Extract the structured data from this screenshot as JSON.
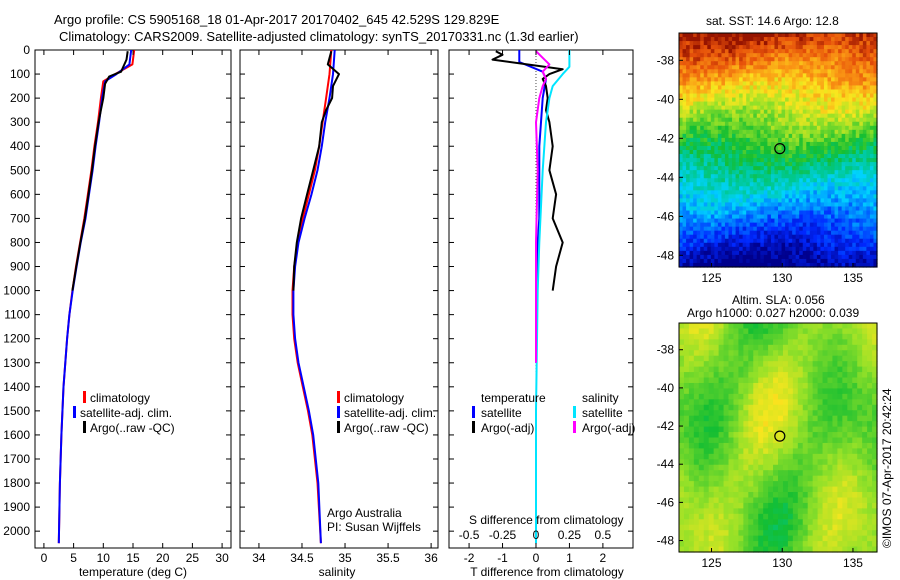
{
  "header": {
    "line1": "Argo profile: CS 5905168_18 01-Apr-2017 20170402_645 42.529S 129.829E",
    "line2": "Climatology: CARS2009. Satellite-adjusted climatology: synTS_20170331.nc (1.3d earlier)"
  },
  "colors": {
    "climatology": "#ff0000",
    "satellite": "#0000ff",
    "argo": "#000000",
    "sal_satellite": "#00e5ff",
    "sal_argo": "#ff00ff"
  },
  "chart_data": [
    {
      "id": "temperature",
      "type": "line",
      "xlabel": "temperature (deg C)",
      "ylabel": "",
      "xlim": [
        -1.5,
        31.5
      ],
      "ylim": [
        2070,
        0
      ],
      "x_ticks": [
        0,
        5,
        10,
        15,
        20,
        25,
        30
      ],
      "y_ticks": [
        0,
        100,
        200,
        300,
        400,
        500,
        600,
        700,
        800,
        900,
        1000,
        1100,
        1200,
        1300,
        1400,
        1500,
        1600,
        1700,
        1800,
        1900,
        2000
      ],
      "legend": [
        "climatology",
        "satellite-adj. clim.",
        "Argo(..raw -QC)"
      ],
      "series": [
        {
          "name": "climatology",
          "color": "red",
          "depth": [
            0,
            60,
            100,
            130,
            200,
            300,
            400,
            500,
            600,
            700,
            800,
            900,
            1000,
            1100,
            1200,
            1300,
            1400,
            1600,
            1800,
            2050
          ],
          "x": [
            15.2,
            14.9,
            12.0,
            10.0,
            9.6,
            9.1,
            8.5,
            8.0,
            7.4,
            6.8,
            6.1,
            5.4,
            4.8,
            4.3,
            3.9,
            3.6,
            3.3,
            2.95,
            2.7,
            2.5
          ]
        },
        {
          "name": "satellite-adj. clim.",
          "color": "blue",
          "depth": [
            0,
            60,
            100,
            130,
            200,
            300,
            400,
            500,
            600,
            700,
            800,
            900,
            1000,
            1100,
            1200,
            1300,
            1400,
            1600,
            1800,
            2050
          ],
          "x": [
            14.7,
            14.4,
            12.2,
            10.3,
            9.8,
            9.3,
            8.7,
            8.2,
            7.6,
            7.0,
            6.2,
            5.5,
            4.85,
            4.3,
            3.9,
            3.6,
            3.3,
            2.95,
            2.7,
            2.5
          ]
        },
        {
          "name": "Argo(..raw -QC)",
          "color": "black",
          "depth": [
            5,
            40,
            90,
            110,
            140,
            200,
            250,
            300,
            400,
            500,
            600,
            700,
            800,
            900,
            1000
          ],
          "x": [
            14.1,
            13.9,
            13.0,
            11.0,
            10.3,
            10.0,
            9.6,
            9.2,
            8.6,
            8.1,
            7.5,
            6.9,
            6.15,
            5.45,
            4.8
          ]
        }
      ]
    },
    {
      "id": "salinity",
      "type": "line",
      "xlabel": "salinity",
      "ylabel": "",
      "xlim": [
        33.78,
        36.08
      ],
      "ylim": [
        2070,
        0
      ],
      "x_ticks": [
        34,
        34.5,
        35,
        35.5,
        36
      ],
      "legend": [
        "climatology",
        "satellite-adj. clim.",
        "Argo(..raw -QC)"
      ],
      "annotation": [
        "Argo Australia",
        "PI: Susan Wijffels"
      ],
      "series": [
        {
          "name": "climatology",
          "color": "red",
          "depth": [
            0,
            100,
            200,
            300,
            400,
            500,
            600,
            700,
            800,
            900,
            1000,
            1100,
            1200,
            1300,
            1400,
            1500,
            1600,
            1800,
            2050
          ],
          "x": [
            34.84,
            34.82,
            34.78,
            34.74,
            34.7,
            34.65,
            34.58,
            34.51,
            34.45,
            34.41,
            34.39,
            34.39,
            34.41,
            34.45,
            34.51,
            34.57,
            34.62,
            34.68,
            34.72
          ]
        },
        {
          "name": "satellite-adj. clim.",
          "color": "blue",
          "depth": [
            0,
            100,
            200,
            300,
            400,
            500,
            600,
            700,
            800,
            900,
            1000,
            1100,
            1200,
            1300,
            1400,
            1500,
            1600,
            1800,
            2050
          ],
          "x": [
            34.88,
            34.86,
            34.82,
            34.77,
            34.73,
            34.68,
            34.61,
            34.53,
            34.46,
            34.42,
            34.4,
            34.4,
            34.42,
            34.46,
            34.52,
            34.58,
            34.63,
            34.69,
            34.72
          ]
        },
        {
          "name": "Argo(..raw -QC)",
          "color": "black",
          "depth": [
            5,
            60,
            100,
            150,
            200,
            250,
            300,
            400,
            500,
            600,
            700,
            800,
            900,
            1000
          ],
          "x": [
            34.84,
            34.8,
            34.93,
            34.86,
            34.85,
            34.78,
            34.73,
            34.7,
            34.63,
            34.56,
            34.49,
            34.44,
            34.41,
            34.4
          ]
        }
      ]
    },
    {
      "id": "difference",
      "type": "line",
      "xlabel": "T difference from climatology",
      "title_bottom": "S difference from climatology",
      "xlim": [
        -2.6,
        2.9
      ],
      "ylim": [
        2070,
        0
      ],
      "x_ticks": [
        -2,
        -1,
        0,
        1,
        2
      ],
      "s_ticks": [
        "-0.5",
        "-0.25",
        "0",
        "0.25",
        "0.5"
      ],
      "s_tick_positions": [
        -2,
        -1,
        0,
        1,
        2
      ],
      "legend_temperature": {
        "title": "temperature",
        "items": [
          "satellite",
          "Argo(-adj)"
        ]
      },
      "legend_salinity": {
        "title": "salinity",
        "items": [
          "satellite",
          "Argo(-adj)"
        ]
      },
      "series": [
        {
          "name": "temperature satellite",
          "color": "blue",
          "depth": [
            0,
            50,
            90,
            120,
            200,
            300,
            400,
            500,
            600,
            700,
            800,
            900,
            1000,
            1100,
            1200,
            1300
          ],
          "x": [
            -0.5,
            -0.5,
            0.2,
            0.3,
            0.2,
            0.15,
            0.1,
            0.1,
            0.1,
            0.1,
            0.05,
            0.05,
            0.03,
            0.02,
            0.0,
            0.0
          ]
        },
        {
          "name": "temperature Argo(-adj)",
          "color": "black",
          "depth": [
            5,
            20,
            40,
            80,
            100,
            120,
            150,
            200,
            250,
            300,
            400,
            500,
            600,
            700,
            800,
            900,
            1000
          ],
          "x": [
            -1.2,
            -1.0,
            -1.3,
            0.8,
            0.4,
            0.2,
            0.3,
            0.35,
            0.3,
            0.4,
            0.5,
            0.4,
            0.6,
            0.5,
            0.8,
            0.6,
            0.5
          ]
        },
        {
          "name": "salinity satellite",
          "color": "cyan",
          "depth": [
            0,
            70,
            100,
            150,
            200,
            300,
            500,
            800,
            1000,
            1500,
            2050
          ],
          "x": [
            1.0,
            1.0,
            0.8,
            0.5,
            0.4,
            0.3,
            0.2,
            0.1,
            0.05,
            0.0,
            0.0
          ]
        },
        {
          "name": "salinity Argo(-adj)",
          "color": "magenta",
          "depth": [
            5,
            60,
            90,
            120,
            150,
            200,
            300,
            500,
            800,
            1100,
            1300
          ],
          "x": [
            0.0,
            0.4,
            0.2,
            0.3,
            0.2,
            0.1,
            0.0,
            0.05,
            0.0,
            0.0,
            0.0
          ]
        }
      ]
    },
    {
      "id": "sst_map",
      "type": "heatmap",
      "title": "sat. SST: 14.6 Argo: 12.8",
      "x_ticks": [
        125,
        130,
        135
      ],
      "y_ticks": [
        -38,
        -40,
        -42,
        -44,
        -46,
        -48
      ],
      "xlim": [
        122.7,
        136.7
      ],
      "ylim": [
        -36.6,
        -48.6
      ],
      "marker": {
        "lon": 129.829,
        "lat": -42.529
      }
    },
    {
      "id": "sla_map",
      "type": "heatmap",
      "title": [
        "Altim. SLA: 0.056",
        "Argo h1000: 0.027 h2000: 0.039"
      ],
      "x_ticks": [
        125,
        130,
        135
      ],
      "y_ticks": [
        -38,
        -40,
        -42,
        -44,
        -46,
        -48
      ],
      "xlim": [
        122.7,
        136.7
      ],
      "ylim": [
        -36.6,
        -48.6
      ],
      "marker": {
        "lon": 129.829,
        "lat": -42.529
      }
    }
  ],
  "credit": "©IMOS 07-Apr-2017 20:42:24"
}
